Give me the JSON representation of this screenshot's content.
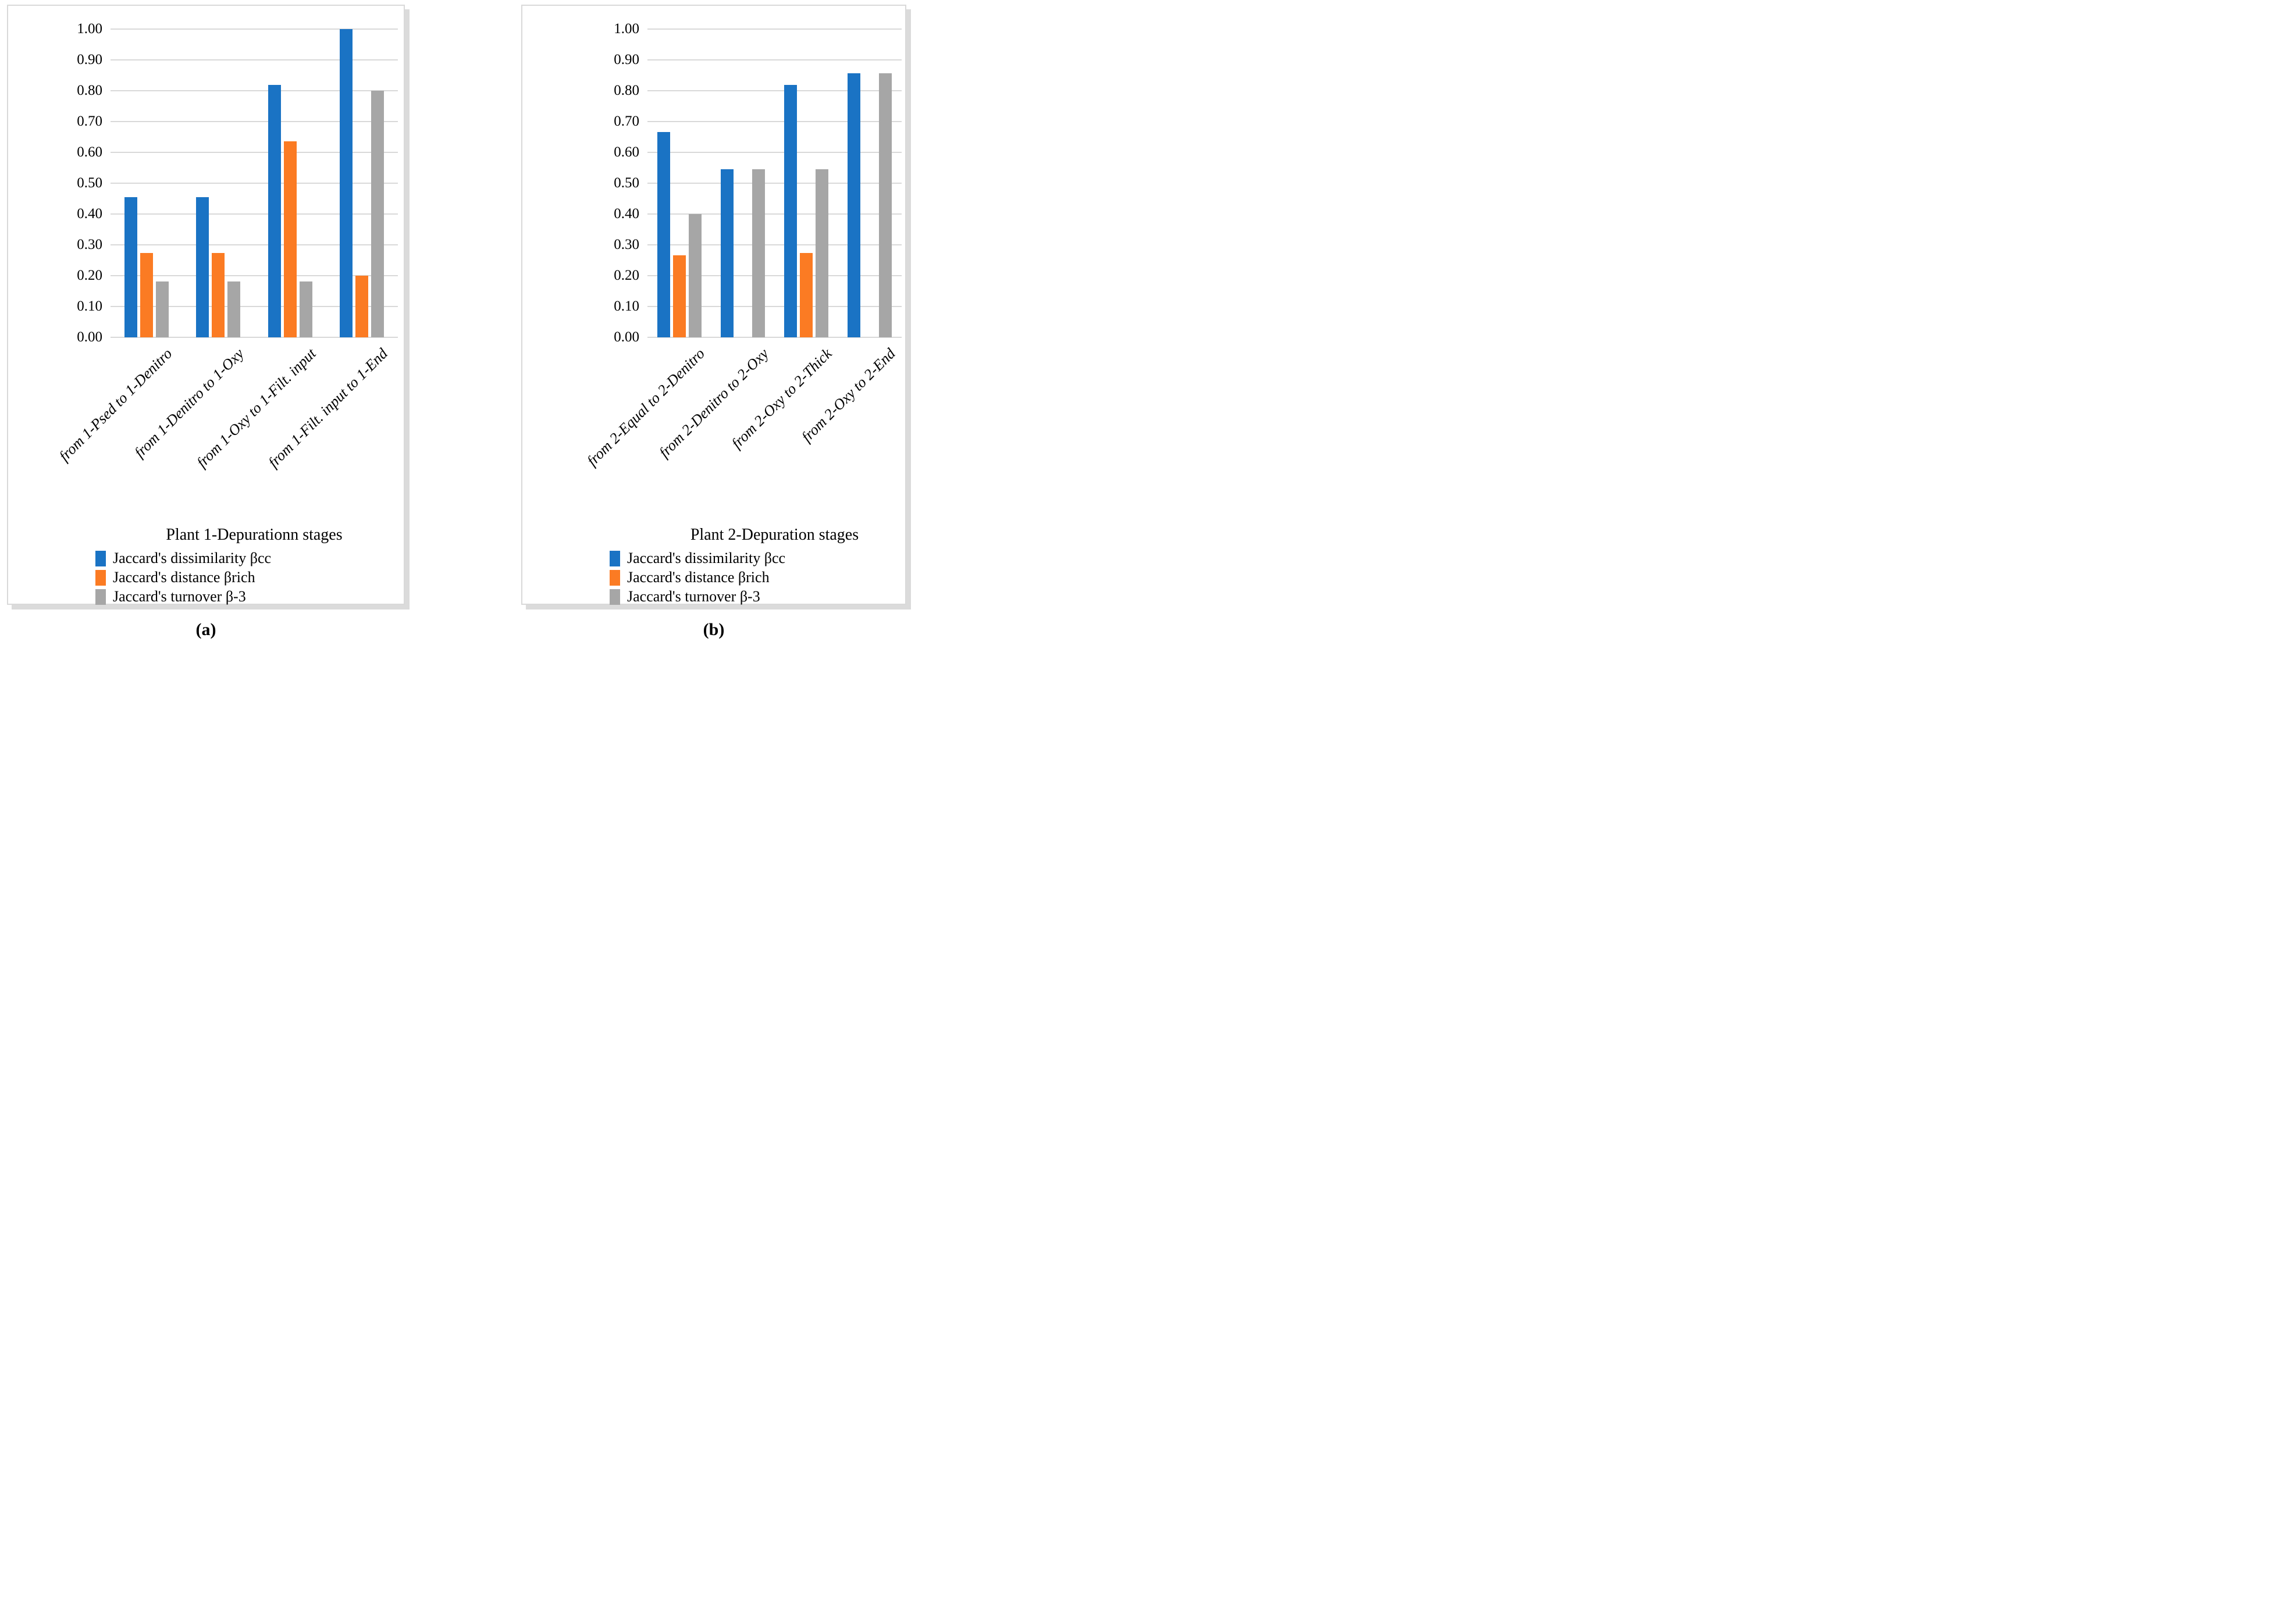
{
  "chart_data": [
    {
      "id": "a",
      "type": "bar",
      "caption": "(a)",
      "xlabel": "Plant 1-Depurationn stages",
      "ylabel": "",
      "ylim": [
        0,
        1.0
      ],
      "ytick_step": 0.1,
      "yticks": [
        "1.00",
        "0.90",
        "0.80",
        "0.70",
        "0.60",
        "0.50",
        "0.40",
        "0.30",
        "0.20",
        "0.10",
        "0.00"
      ],
      "grid": true,
      "legend_position": "bottom-left",
      "categories": [
        "from 1-Psed to 1-Denitro",
        "from 1-Denitro to 1-Oxy",
        "from 1-Oxy to 1-Filt. input",
        "from 1-Filt. input to 1-End"
      ],
      "series": [
        {
          "name": "Jaccard's dissimilarity βcc",
          "color": "#1A73C4",
          "values": [
            0.455,
            0.455,
            0.818,
            1.0
          ]
        },
        {
          "name": "Jaccard's distance βrich",
          "color": "#FB7B23",
          "values": [
            0.273,
            0.273,
            0.636,
            0.2
          ]
        },
        {
          "name": "Jaccard's turnover β-3",
          "color": "#A6A6A6",
          "values": [
            0.182,
            0.182,
            0.182,
            0.8
          ]
        }
      ]
    },
    {
      "id": "b",
      "type": "bar",
      "caption": "(b)",
      "xlabel": "Plant 2-Depuration stages",
      "ylabel": "",
      "ylim": [
        0,
        1.0
      ],
      "ytick_step": 0.1,
      "yticks": [
        "1.00",
        "0.90",
        "0.80",
        "0.70",
        "0.60",
        "0.50",
        "0.40",
        "0.30",
        "0.20",
        "0.10",
        "0.00"
      ],
      "grid": true,
      "legend_position": "bottom-left",
      "categories": [
        "from 2-Equal to 2-Denitro",
        "from 2-Denitro to 2-Oxy",
        "from 2-Oxy to 2-Thick",
        "from 2-Oxy to 2-End"
      ],
      "series": [
        {
          "name": "Jaccard's dissimilarity βcc",
          "color": "#1A73C4",
          "values": [
            0.667,
            0.545,
            0.818,
            0.857
          ]
        },
        {
          "name": "Jaccard's distance βrich",
          "color": "#FB7B23",
          "values": [
            0.267,
            0.0,
            0.273,
            0.0
          ]
        },
        {
          "name": "Jaccard's turnover β-3",
          "color": "#A6A6A6",
          "values": [
            0.4,
            0.545,
            0.545,
            0.857
          ]
        }
      ]
    }
  ]
}
